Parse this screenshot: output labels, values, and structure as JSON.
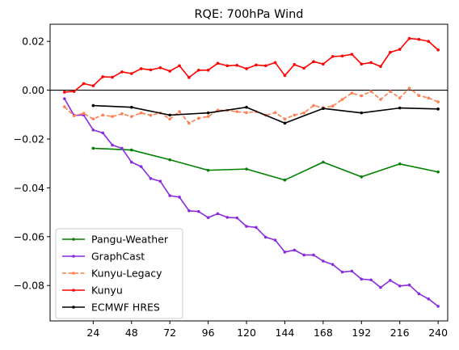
{
  "chart_data": {
    "type": "line",
    "title": "RQE: 700hPa Wind",
    "xlabel": "",
    "ylabel": "",
    "xlim": [
      -3,
      246
    ],
    "ylim": [
      -0.0945,
      0.027
    ],
    "xticks": [
      24,
      48,
      72,
      96,
      120,
      144,
      168,
      192,
      216,
      240
    ],
    "yticks": [
      0.02,
      0.0,
      -0.02,
      -0.04,
      -0.06,
      -0.08
    ],
    "ytick_labels": [
      "0.02",
      "0.00",
      "−0.02",
      "−0.04",
      "−0.06",
      "−0.08"
    ],
    "reference_line": 0,
    "grid": false,
    "legend_position": "lower-left",
    "series": [
      {
        "name": "Pangu-Weather",
        "color": "#008000",
        "dash": "solid",
        "x": [
          24,
          48,
          72,
          96,
          120,
          144,
          168,
          192,
          216,
          240
        ],
        "y": [
          -0.0238,
          -0.0245,
          -0.0285,
          -0.0328,
          -0.0323,
          -0.0368,
          -0.0295,
          -0.0355,
          -0.0302,
          -0.0335
        ]
      },
      {
        "name": "GraphCast",
        "color": "#8a2be2",
        "dash": "solid",
        "x": [
          6,
          12,
          18,
          24,
          30,
          36,
          42,
          48,
          54,
          60,
          66,
          72,
          78,
          84,
          90,
          96,
          102,
          108,
          114,
          120,
          126,
          132,
          138,
          144,
          150,
          156,
          162,
          168,
          174,
          180,
          186,
          192,
          198,
          204,
          210,
          216,
          222,
          228,
          234,
          240
        ],
        "y": [
          -0.0035,
          -0.0103,
          -0.0102,
          -0.0163,
          -0.0175,
          -0.0225,
          -0.0238,
          -0.0295,
          -0.0313,
          -0.0362,
          -0.0373,
          -0.0432,
          -0.0438,
          -0.0494,
          -0.0497,
          -0.0522,
          -0.0506,
          -0.0521,
          -0.0523,
          -0.0558,
          -0.0562,
          -0.0602,
          -0.0614,
          -0.0663,
          -0.0655,
          -0.0675,
          -0.0675,
          -0.07,
          -0.0714,
          -0.0745,
          -0.0741,
          -0.0774,
          -0.0777,
          -0.0808,
          -0.0779,
          -0.0802,
          -0.0798,
          -0.0834,
          -0.0855,
          -0.0885
        ]
      },
      {
        "name": "Kunyu-Legacy",
        "color": "#ff7f50",
        "dash": "dashed",
        "x": [
          6,
          12,
          18,
          24,
          30,
          36,
          42,
          48,
          54,
          60,
          66,
          72,
          78,
          84,
          90,
          96,
          102,
          108,
          114,
          120,
          126,
          132,
          138,
          144,
          150,
          156,
          162,
          168,
          174,
          180,
          186,
          192,
          198,
          204,
          210,
          216,
          222,
          228,
          234,
          240
        ],
        "y": [
          -0.0068,
          -0.0105,
          -0.0095,
          -0.0118,
          -0.0102,
          -0.0108,
          -0.0097,
          -0.0108,
          -0.0093,
          -0.0103,
          -0.0093,
          -0.0118,
          -0.0088,
          -0.0135,
          -0.0115,
          -0.0108,
          -0.0082,
          -0.0083,
          -0.0088,
          -0.0092,
          -0.0088,
          -0.0103,
          -0.0092,
          -0.0118,
          -0.0102,
          -0.0093,
          -0.0063,
          -0.0072,
          -0.0065,
          -0.0038,
          -0.0012,
          -0.0023,
          -0.0005,
          -0.0038,
          -0.0005,
          -0.0032,
          0.0008,
          -0.0022,
          -0.0032,
          -0.0048
        ]
      },
      {
        "name": "Kunyu",
        "color": "#ff0000",
        "dash": "solid",
        "x": [
          6,
          12,
          18,
          24,
          30,
          36,
          42,
          48,
          54,
          60,
          66,
          72,
          78,
          84,
          90,
          96,
          102,
          108,
          114,
          120,
          126,
          132,
          138,
          144,
          150,
          156,
          162,
          168,
          174,
          180,
          186,
          192,
          198,
          204,
          210,
          216,
          222,
          228,
          234,
          240
        ],
        "y": [
          -0.0008,
          -0.0005,
          0.0027,
          0.0018,
          0.0055,
          0.0053,
          0.0075,
          0.0068,
          0.0088,
          0.0083,
          0.0092,
          0.0078,
          0.01,
          0.0052,
          0.0082,
          0.0082,
          0.011,
          0.01,
          0.0102,
          0.0088,
          0.0103,
          0.01,
          0.0113,
          0.006,
          0.0105,
          0.009,
          0.0117,
          0.0107,
          0.0138,
          0.014,
          0.0147,
          0.0107,
          0.0113,
          0.0097,
          0.0155,
          0.0167,
          0.0212,
          0.0208,
          0.02,
          0.0165
        ]
      },
      {
        "name": "ECMWF HRES",
        "color": "#000000",
        "dash": "solid",
        "x": [
          24,
          48,
          72,
          96,
          120,
          144,
          168,
          192,
          216,
          240
        ],
        "y": [
          -0.0063,
          -0.007,
          -0.0102,
          -0.0093,
          -0.007,
          -0.0135,
          -0.0075,
          -0.0093,
          -0.0073,
          -0.0077
        ]
      }
    ]
  }
}
